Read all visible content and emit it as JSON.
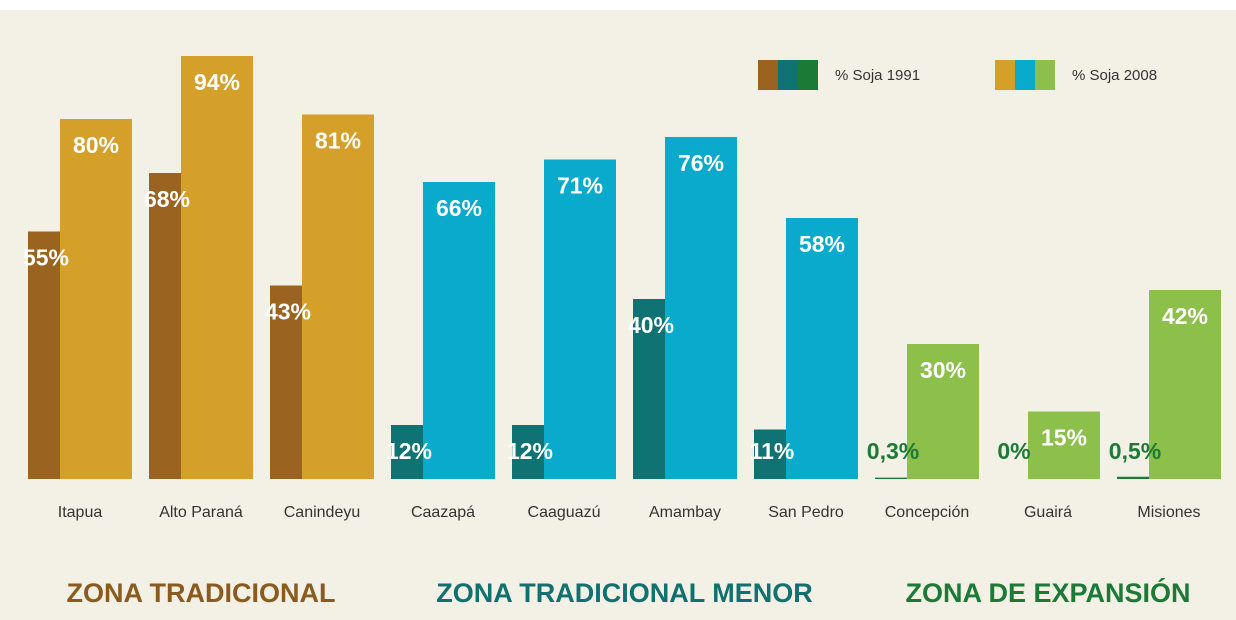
{
  "chart_data": {
    "type": "bar",
    "categories": [
      "Itapua",
      "Alto Paraná",
      "Canindeyu",
      "Caazapá",
      "Caaguazú",
      "Amambay",
      "San Pedro",
      "Concepción",
      "Guairá",
      "Misiones"
    ],
    "series": [
      {
        "name": "% Soja 1991",
        "colors": [
          "#9a6320",
          "#9a6320",
          "#9a6320",
          "#0f7373",
          "#0f7373",
          "#0f7373",
          "#0f7373",
          "#1a7a36",
          "#1a7a36",
          "#1a7a36"
        ],
        "values": [
          55,
          68,
          43,
          12,
          12,
          40,
          11,
          0.3,
          0,
          0.5
        ],
        "value_labels": [
          "55%",
          "68%",
          "43%",
          "12%",
          "12%",
          "40%",
          "11%",
          "0,3%",
          "0%",
          "0,5%"
        ]
      },
      {
        "name": "% Soja 2008",
        "colors": [
          "#d4a02a",
          "#d4a02a",
          "#d4a02a",
          "#0aaacc",
          "#0aaacc",
          "#0aaacc",
          "#0aaacc",
          "#8cc04a",
          "#8cc04a",
          "#8cc04a"
        ],
        "values": [
          80,
          94,
          81,
          66,
          71,
          76,
          58,
          30,
          15,
          42
        ],
        "value_labels": [
          "80%",
          "94%",
          "81%",
          "66%",
          "71%",
          "76%",
          "58%",
          "30%",
          "15%",
          "42%"
        ]
      }
    ],
    "zones": [
      {
        "name": "ZONA TRADICIONAL",
        "color": "#8b5a1e",
        "span": 3
      },
      {
        "name": "ZONA TRADICIONAL MENOR",
        "color": "#117070",
        "span": 4
      },
      {
        "name": "ZONA DE EXPANSIÓN",
        "color": "#1a7a36",
        "span": 3
      }
    ],
    "ylim": [
      0,
      100
    ],
    "grid": false
  }
}
